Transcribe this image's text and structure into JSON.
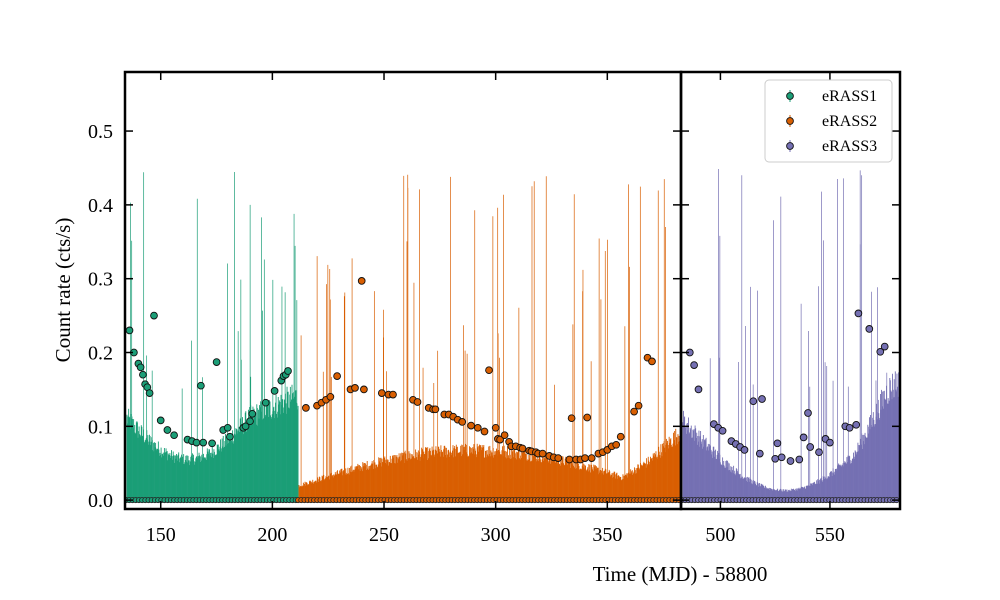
{
  "chart_data": {
    "type": "scatter",
    "ylabel": "Count rate (cts/s)",
    "xlabel": "Time (MJD) - 58800",
    "ylim": [
      -0.012,
      0.58
    ],
    "yticks": [
      0.0,
      0.1,
      0.2,
      0.3,
      0.4,
      0.5
    ],
    "ytick_labels": [
      "0.0",
      "0.1",
      "0.2",
      "0.3",
      "0.4",
      "0.5"
    ],
    "grid": false,
    "legend_position": "top-right",
    "panels": [
      {
        "xlim": [
          134,
          383
        ],
        "xticks": [
          150,
          200,
          250,
          300,
          350
        ],
        "xtick_labels": [
          "150",
          "200",
          "250",
          "300",
          "350"
        ]
      },
      {
        "xlim": [
          482,
          582
        ],
        "xticks": [
          500,
          550
        ],
        "xtick_labels": [
          "500",
          "550"
        ]
      }
    ],
    "series": [
      {
        "name": "eRASS1",
        "color": "#1b9e77",
        "points": [
          [
            136,
            0.23
          ],
          [
            138,
            0.2
          ],
          [
            140,
            0.185
          ],
          [
            141,
            0.18
          ],
          [
            142,
            0.17
          ],
          [
            143,
            0.157
          ],
          [
            144,
            0.153
          ],
          [
            145,
            0.145
          ],
          [
            147,
            0.25
          ],
          [
            150,
            0.108
          ],
          [
            153,
            0.095
          ],
          [
            156,
            0.088
          ],
          [
            162,
            0.082
          ],
          [
            164,
            0.08
          ],
          [
            166,
            0.078
          ],
          [
            168,
            0.155
          ],
          [
            169,
            0.078
          ],
          [
            173,
            0.077
          ],
          [
            175,
            0.187
          ],
          [
            178,
            0.095
          ],
          [
            180,
            0.098
          ],
          [
            181,
            0.086
          ],
          [
            187,
            0.098
          ],
          [
            188,
            0.1
          ],
          [
            190,
            0.107
          ],
          [
            191,
            0.117
          ],
          [
            197,
            0.132
          ],
          [
            201,
            0.148
          ],
          [
            204,
            0.162
          ],
          [
            205,
            0.168
          ],
          [
            206,
            0.17
          ],
          [
            207,
            0.175
          ]
        ]
      },
      {
        "name": "eRASS2",
        "color": "#d95f02",
        "points": [
          [
            215,
            0.125
          ],
          [
            220,
            0.128
          ],
          [
            222,
            0.132
          ],
          [
            224,
            0.136
          ],
          [
            226,
            0.14
          ],
          [
            229,
            0.168
          ],
          [
            235,
            0.15
          ],
          [
            237,
            0.152
          ],
          [
            240,
            0.297
          ],
          [
            241,
            0.15
          ],
          [
            249,
            0.145
          ],
          [
            252,
            0.143
          ],
          [
            254,
            0.143
          ],
          [
            263,
            0.136
          ],
          [
            265,
            0.133
          ],
          [
            270,
            0.125
          ],
          [
            272,
            0.123
          ],
          [
            273,
            0.123
          ],
          [
            277,
            0.116
          ],
          [
            279,
            0.116
          ],
          [
            281,
            0.113
          ],
          [
            283,
            0.109
          ],
          [
            285,
            0.106
          ],
          [
            289,
            0.101
          ],
          [
            292,
            0.098
          ],
          [
            295,
            0.093
          ],
          [
            297,
            0.176
          ],
          [
            300,
            0.098
          ],
          [
            301,
            0.083
          ],
          [
            302,
            0.082
          ],
          [
            304,
            0.088
          ],
          [
            306,
            0.079
          ],
          [
            307,
            0.073
          ],
          [
            309,
            0.073
          ],
          [
            311,
            0.071
          ],
          [
            312,
            0.07
          ],
          [
            315,
            0.067
          ],
          [
            316,
            0.066
          ],
          [
            318,
            0.065
          ],
          [
            319,
            0.063
          ],
          [
            321,
            0.063
          ],
          [
            324,
            0.06
          ],
          [
            326,
            0.058
          ],
          [
            328,
            0.057
          ],
          [
            333,
            0.055
          ],
          [
            334,
            0.111
          ],
          [
            336,
            0.055
          ],
          [
            338,
            0.055
          ],
          [
            340,
            0.057
          ],
          [
            341,
            0.112
          ],
          [
            343,
            0.057
          ],
          [
            346,
            0.063
          ],
          [
            348,
            0.065
          ],
          [
            350,
            0.068
          ],
          [
            352,
            0.073
          ],
          [
            354,
            0.075
          ],
          [
            356,
            0.086
          ],
          [
            362,
            0.12
          ],
          [
            364,
            0.128
          ],
          [
            368,
            0.193
          ],
          [
            370,
            0.188
          ]
        ]
      },
      {
        "name": "eRASS3",
        "color": "#7570b3",
        "points": [
          [
            486,
            0.2
          ],
          [
            488,
            0.183
          ],
          [
            490,
            0.15
          ],
          [
            497,
            0.103
          ],
          [
            499,
            0.098
          ],
          [
            501,
            0.094
          ],
          [
            505,
            0.08
          ],
          [
            507,
            0.076
          ],
          [
            509,
            0.072
          ],
          [
            511,
            0.068
          ],
          [
            515,
            0.134
          ],
          [
            518,
            0.063
          ],
          [
            519,
            0.137
          ],
          [
            525,
            0.056
          ],
          [
            526,
            0.077
          ],
          [
            528,
            0.058
          ],
          [
            532,
            0.053
          ],
          [
            536,
            0.055
          ],
          [
            538,
            0.085
          ],
          [
            540,
            0.118
          ],
          [
            541,
            0.072
          ],
          [
            545,
            0.065
          ],
          [
            548,
            0.083
          ],
          [
            550,
            0.078
          ],
          [
            557,
            0.1
          ],
          [
            559,
            0.098
          ],
          [
            562,
            0.102
          ],
          [
            563,
            0.253
          ],
          [
            568,
            0.232
          ],
          [
            573,
            0.201
          ],
          [
            575,
            0.208
          ]
        ]
      }
    ]
  }
}
